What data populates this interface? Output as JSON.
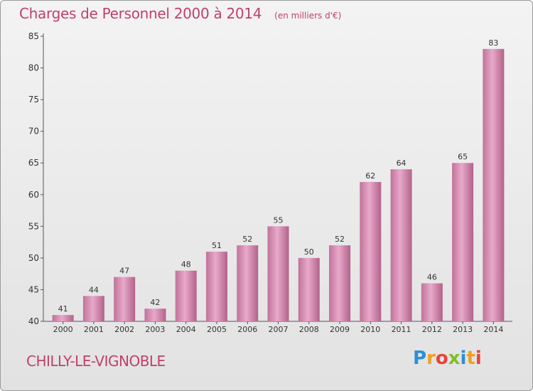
{
  "title": "Charges de Personnel 2000 à 2014",
  "subtitle": "(en milliers d'€)",
  "town": "CHILLY-LE-VIGNOBLE",
  "logo_text": "Proxiti",
  "colors": {
    "accent": "#c0406e",
    "bar_light": "#e6a6c8",
    "bar_dark": "#b8678f"
  },
  "chart_data": {
    "type": "bar",
    "categories": [
      "2000",
      "2001",
      "2002",
      "2003",
      "2004",
      "2005",
      "2006",
      "2007",
      "2008",
      "2009",
      "2010",
      "2011",
      "2012",
      "2013",
      "2014"
    ],
    "values": [
      41,
      44,
      47,
      42,
      48,
      51,
      52,
      55,
      50,
      52,
      62,
      64,
      46,
      65,
      83
    ],
    "title": "Charges de Personnel 2000 à 2014",
    "subtitle": "(en milliers d'€)",
    "xlabel": "",
    "ylabel": "",
    "ylim": [
      40,
      85
    ],
    "yticks": [
      40,
      45,
      50,
      55,
      60,
      65,
      70,
      75,
      80,
      85
    ],
    "grid": false
  }
}
